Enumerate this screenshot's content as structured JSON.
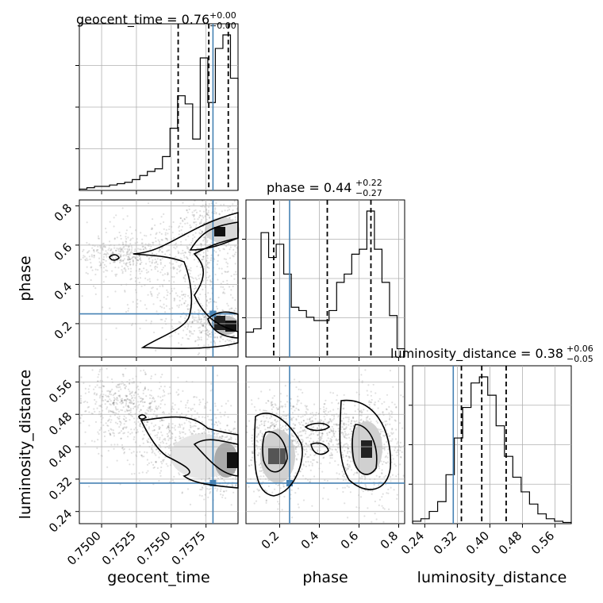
{
  "chart_data": {
    "type": "corner",
    "parameters": [
      "geocent_time",
      "phase",
      "luminosity_distance"
    ],
    "axis_labels": [
      "geocent_time",
      "phase",
      "luminosity_distance"
    ],
    "truths": {
      "geocent_time": 0.758,
      "phase": 0.25,
      "luminosity_distance": 0.31
    },
    "titles": {
      "geocent_time": {
        "text": "geocent_time = 0.76",
        "sup": "+0.00",
        "sub": "−0.00"
      },
      "phase": {
        "text": "phase = 0.44",
        "sup": "+0.22",
        "sub": "−0.27"
      },
      "luminosity_distance": {
        "text": "luminosity_distance = 0.38",
        "sup": "+0.06",
        "sub": "−0.05"
      }
    },
    "quantiles": {
      "geocent_time": [
        0.7555,
        0.7577,
        0.7591
      ],
      "phase": [
        0.17,
        0.44,
        0.66
      ],
      "luminosity_distance": [
        0.33,
        0.38,
        0.44
      ]
    },
    "ranges": {
      "geocent_time": [
        0.7484,
        0.7598
      ],
      "phase": [
        0.03,
        0.83
      ],
      "luminosity_distance": [
        0.21,
        0.6
      ]
    },
    "ticks": {
      "geocent_time": [
        "0.7500",
        "0.7525",
        "0.7550",
        "0.7575"
      ],
      "phase": [
        "0.2",
        "0.4",
        "0.6",
        "0.8"
      ],
      "luminosity_distance": [
        "0.24",
        "0.32",
        "0.40",
        "0.48",
        "0.56"
      ]
    },
    "histograms": {
      "geocent_time": {
        "counts": [
          1,
          2,
          3,
          3,
          4,
          5,
          6,
          8,
          11,
          14,
          16,
          25,
          46,
          70,
          64,
          38,
          98,
          65,
          105,
          115,
          83
        ],
        "range": [
          0.7484,
          0.7598
        ]
      },
      "phase": {
        "counts": [
          15,
          17,
          75,
          60,
          68,
          50,
          30,
          28,
          24,
          22,
          22,
          28,
          45,
          50,
          62,
          65,
          88,
          65,
          45,
          25,
          5
        ],
        "range": [
          0.03,
          0.83
        ]
      },
      "luminosity_distance": {
        "counts": [
          2,
          4,
          10,
          18,
          40,
          70,
          95,
          115,
          120,
          105,
          80,
          55,
          38,
          26,
          16,
          8,
          4,
          2,
          1
        ],
        "range": [
          0.21,
          0.6
        ]
      }
    },
    "grid": true
  }
}
